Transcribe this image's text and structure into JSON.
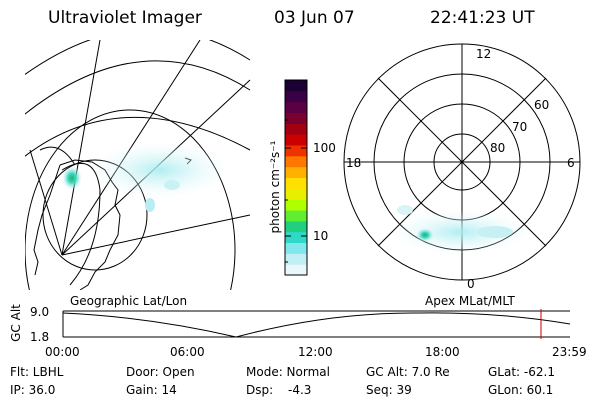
{
  "header": {
    "instrument": "Ultraviolet Imager",
    "date": "03 Jun 07",
    "time": "22:41:23 UT"
  },
  "colorbar": {
    "unit_label": "photon cm⁻²s⁻¹",
    "tick_labels": [
      "100",
      "10"
    ],
    "colors": [
      "#1a0033",
      "#3a0046",
      "#5a0044",
      "#7a0030",
      "#a00010",
      "#cc0000",
      "#ee3300",
      "#ff7700",
      "#ffb000",
      "#ffe000",
      "#e8f000",
      "#b0ff00",
      "#60ee30",
      "#20d080",
      "#30d8c8",
      "#80e8ec",
      "#c0f0f4",
      "#e8f8fa"
    ]
  },
  "polar_plot": {
    "mlt_labels": {
      "top": "12",
      "left": "18",
      "right": "6",
      "bottom": "0"
    },
    "lat_labels": [
      "60",
      "70",
      "80"
    ]
  },
  "map_labels": {
    "left": "Geographic Lat/Lon",
    "right": "Apex MLat/MLT"
  },
  "altitude_strip": {
    "axis_label": "GC Alt",
    "y_ticks": [
      "9.0",
      "1.8"
    ],
    "x_ticks": [
      "00:00",
      "06:00",
      "12:00",
      "18:00",
      "23:59"
    ],
    "marker_time": "22:41",
    "marker_color": "#cc0000"
  },
  "info": {
    "flt": "Flt: LBHL",
    "ip": "IP: 36.0",
    "door": "Door: Open",
    "gain": "Gain: 14",
    "mode": "Mode: Normal",
    "dsp": "Dsp:",
    "dsp_value": "-4.3",
    "gc_alt": "GC Alt: 7.0 Re",
    "seq": "Seq: 39",
    "glat": "GLat: -62.1",
    "glon": "GLon: 60.1"
  }
}
